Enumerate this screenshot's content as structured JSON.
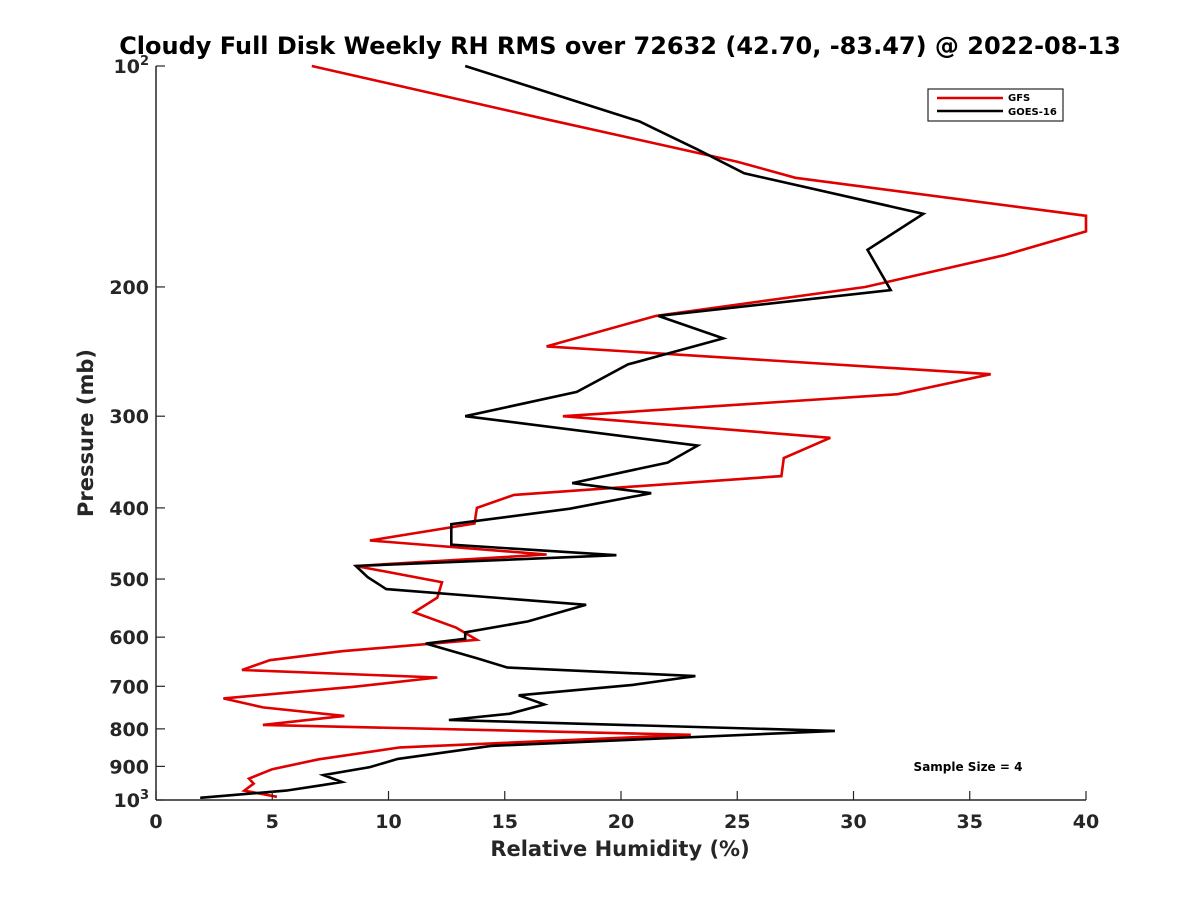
{
  "chart_data": {
    "type": "line",
    "title": "Cloudy Full Disk Weekly RH RMS over 72632 (42.70, -83.47) @ 2022-08-13",
    "xlabel": "Relative Humidity (%)",
    "ylabel": "Pressure (mb)",
    "xlim": [
      0,
      40
    ],
    "ylim": [
      100,
      1000
    ],
    "y_scale": "log",
    "y_reversed": true,
    "grid": false,
    "legend_position": "top-right",
    "x_ticks": [
      "0",
      "5",
      "10",
      "15",
      "20",
      "25",
      "30",
      "35",
      "40"
    ],
    "y_ticks": [
      {
        "value": 100,
        "base": "10",
        "exp": "2"
      },
      {
        "value": 200,
        "label": "200"
      },
      {
        "value": 300,
        "label": "300"
      },
      {
        "value": 400,
        "label": "400"
      },
      {
        "value": 500,
        "label": "500"
      },
      {
        "value": 600,
        "label": "600"
      },
      {
        "value": 700,
        "label": "700"
      },
      {
        "value": 800,
        "label": "800"
      },
      {
        "value": 900,
        "label": "900"
      },
      {
        "value": 1000,
        "base": "10",
        "exp": "3"
      }
    ],
    "series": [
      {
        "name": "GFS",
        "color": "#e00000",
        "x": [
          6.7,
          16.7,
          25.0,
          27.5,
          40.0,
          40.0,
          36.5,
          30.5,
          21.5,
          16.8,
          35.9,
          31.9,
          17.5,
          29.0,
          27.0,
          26.9,
          15.4,
          13.8,
          13.7,
          9.2,
          16.8,
          8.6,
          12.3,
          12.1,
          11.1,
          12.9,
          13.8,
          8.0,
          4.9,
          3.7,
          12.1,
          8.5,
          2.9,
          4.6,
          8.1,
          4.6,
          23.0,
          10.5,
          7.0,
          5.0,
          4.0,
          4.2,
          3.8,
          5.2
        ],
        "y": [
          100,
          118,
          135,
          142,
          160,
          168,
          181,
          200,
          219,
          241,
          263,
          280,
          300,
          321,
          342,
          362,
          384,
          400,
          420,
          443,
          463,
          480,
          505,
          530,
          555,
          582,
          605,
          627,
          645,
          665,
          681,
          701,
          727,
          748,
          768,
          790,
          815,
          848,
          880,
          908,
          935,
          950,
          971,
          990
        ]
      },
      {
        "name": "GOES-16",
        "color": "#000000",
        "x": [
          13.3,
          20.8,
          23.3,
          25.3,
          33.0,
          30.6,
          31.6,
          21.6,
          24.4,
          20.3,
          18.1,
          13.3,
          23.3,
          22.0,
          17.9,
          21.3,
          17.8,
          12.7,
          12.7,
          19.8,
          8.6,
          9.1,
          9.9,
          18.5,
          16.0,
          13.3,
          13.3,
          11.6,
          13.8,
          15.1,
          23.2,
          20.5,
          15.6,
          16.7,
          15.2,
          12.6,
          29.2,
          14.4,
          10.4,
          9.2,
          7.2,
          8.0,
          7.1,
          5.6,
          1.9
        ],
        "y": [
          100,
          119,
          130,
          140,
          159,
          178,
          202,
          219,
          235,
          255,
          278,
          300,
          329,
          347,
          370,
          382,
          401,
          421,
          449,
          464,
          480,
          497,
          516,
          542,
          571,
          591,
          603,
          612,
          641,
          660,
          678,
          697,
          720,
          741,
          763,
          778,
          805,
          844,
          879,
          902,
          925,
          945,
          955,
          971,
          993
        ]
      }
    ],
    "annotations": [
      "Sample Size = 4"
    ]
  }
}
